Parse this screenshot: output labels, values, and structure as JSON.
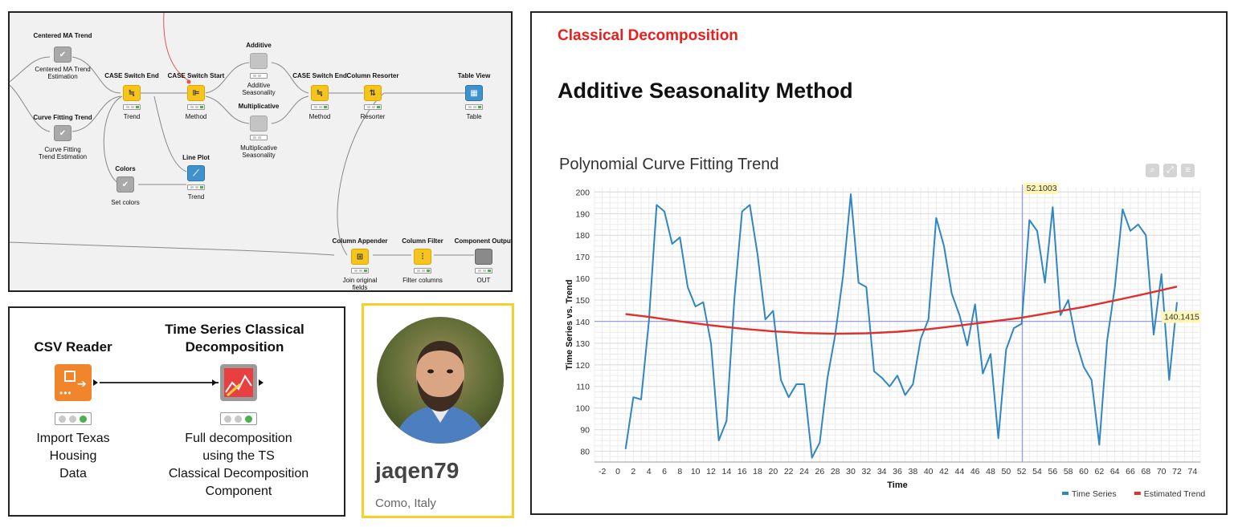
{
  "workflow": {
    "nodes": {
      "centered_ma": {
        "title": "Centered MA Trend",
        "label_lines": [
          "Centered MA Trend",
          "Estimation"
        ]
      },
      "curve_fitting": {
        "title": "Curve Fitting Trend",
        "label_lines": [
          "Curve Fitting",
          "Trend Estimation"
        ]
      },
      "case_switch_end_1": {
        "title": "CASE Switch End",
        "label_lines": [
          "Trend"
        ]
      },
      "case_switch_start": {
        "title": "CASE Switch Start",
        "label_lines": [
          "Method"
        ]
      },
      "additive": {
        "title": "Additive",
        "label_lines": [
          "Additive",
          "Seasonality"
        ]
      },
      "multiplicative": {
        "title": "Multiplicative",
        "label_lines": [
          "Multiplicative",
          "Seasonality"
        ]
      },
      "case_switch_end_2": {
        "title": "CASE Switch End",
        "label_lines": [
          "Method"
        ]
      },
      "column_resorter": {
        "title": "Column Resorter",
        "label_lines": [
          "Resorter"
        ]
      },
      "table_view": {
        "title": "Table View",
        "label_lines": [
          "Table"
        ]
      },
      "colors": {
        "title": "Colors",
        "label_lines": [
          "Set colors"
        ]
      },
      "line_plot": {
        "title": "Line Plot",
        "label_lines": [
          "Trend"
        ]
      },
      "column_appender": {
        "title": "Column Appender",
        "label_lines": [
          "Join original",
          "fields"
        ]
      },
      "column_filter": {
        "title": "Column Filter",
        "label_lines": [
          "Filter columns"
        ]
      },
      "component_output": {
        "title": "Component Output",
        "label_lines": [
          "OUT"
        ]
      }
    }
  },
  "mini_workflow": {
    "csv_reader": {
      "title": "CSV Reader",
      "label_lines": [
        "Import Texas",
        "Housing",
        "Data"
      ]
    },
    "decomposition": {
      "title_lines": [
        "Time Series Classical",
        "Decomposition"
      ],
      "label_lines": [
        "Full decomposition",
        "using the TS",
        "Classical Decomposition",
        "Component"
      ]
    }
  },
  "profile": {
    "username": "jaqen79",
    "location": "Como, Italy"
  },
  "panel": {
    "section_title": "Classical Decomposition",
    "heading": "Additive Seasonality Method"
  },
  "icons": {
    "toolbar": [
      "zoom-icon",
      "fullscreen-icon",
      "menu-icon"
    ]
  },
  "colors": {
    "series": "#2f86c1",
    "trend": "#e0302c",
    "crosshair": "#9a9ae8",
    "accent_red": "#e8201d",
    "profile_border": "#f5cf2a"
  },
  "chart_data": {
    "type": "line",
    "title": "Polynomial Curve Fitting Trend",
    "xlabel": "Time",
    "ylabel": "Time Series vs. Trend",
    "xlim": [
      -3,
      75
    ],
    "ylim": [
      75,
      202
    ],
    "x_ticks": [
      -2,
      0,
      2,
      4,
      6,
      8,
      10,
      12,
      14,
      16,
      18,
      20,
      22,
      24,
      26,
      28,
      30,
      32,
      34,
      36,
      38,
      40,
      42,
      44,
      46,
      48,
      50,
      52,
      54,
      56,
      58,
      60,
      62,
      64,
      66,
      68,
      70,
      72,
      74
    ],
    "y_ticks": [
      80,
      90,
      100,
      110,
      120,
      130,
      140,
      150,
      160,
      170,
      180,
      190,
      200
    ],
    "grid": true,
    "legend_position": "bottom-right",
    "series": [
      {
        "name": "Time Series",
        "color": "#2f86c1",
        "x": [
          1,
          2,
          3,
          4,
          5,
          6,
          7,
          8,
          9,
          10,
          11,
          12,
          13,
          14,
          15,
          16,
          17,
          18,
          19,
          20,
          21,
          22,
          23,
          24,
          25,
          26,
          27,
          28,
          29,
          30,
          31,
          32,
          33,
          34,
          35,
          36,
          37,
          38,
          39,
          40,
          41,
          42,
          43,
          44,
          45,
          46,
          47,
          48,
          49,
          50,
          51,
          52,
          53,
          54,
          55,
          56,
          57,
          58,
          59,
          60,
          61,
          62,
          63,
          64,
          65,
          66,
          67,
          68,
          69,
          70,
          71,
          72
        ],
        "y": [
          81,
          105,
          104,
          140,
          194,
          191,
          176,
          179,
          156,
          147,
          149,
          130,
          85,
          94,
          150,
          191,
          194,
          171,
          141,
          145,
          113,
          105,
          111,
          111,
          77,
          84,
          114,
          134,
          161,
          199,
          158,
          156,
          117,
          114,
          110,
          115,
          106,
          111,
          132,
          141,
          188,
          175,
          153,
          143,
          129,
          148,
          116,
          125,
          86,
          127,
          137,
          139,
          187,
          182,
          158,
          193,
          143,
          150,
          131,
          119,
          113,
          83,
          131,
          156,
          192,
          182,
          185,
          180,
          134,
          162,
          113,
          149
        ]
      },
      {
        "name": "Estimated Trend",
        "color": "#e0302c",
        "x": [
          1,
          4,
          8,
          12,
          16,
          20,
          24,
          28,
          32,
          36,
          40,
          44,
          48,
          52,
          56,
          60,
          64,
          68,
          72
        ],
        "y": [
          143.5,
          142.2,
          140.1,
          138.3,
          136.7,
          135.5,
          134.7,
          134.4,
          134.6,
          135.3,
          136.5,
          138.2,
          140.0,
          141.8,
          144.3,
          146.8,
          149.8,
          152.9,
          156.2
        ]
      }
    ],
    "annotations": [
      {
        "text": "52.1003",
        "axis": "x",
        "value": 52.1003
      },
      {
        "text": "140.1415",
        "axis": "y",
        "value": 140.1415
      }
    ]
  }
}
